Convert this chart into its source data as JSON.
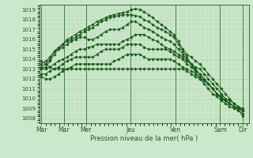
{
  "xlabel": "Pression niveau de la mer( hPa )",
  "bg_color": "#cce8cc",
  "plot_bg_color": "#cce8cc",
  "grid_color": "#aacfaa",
  "line_color": "#1a5c1a",
  "ylim": [
    1007.5,
    1019.5
  ],
  "yticks": [
    1008,
    1009,
    1010,
    1011,
    1012,
    1013,
    1014,
    1015,
    1016,
    1017,
    1018,
    1019
  ],
  "xtick_labels": [
    "Mar",
    "Mar",
    "Mer",
    "Jeu",
    "Ven",
    "Sam",
    "Dir"
  ],
  "xtick_positions": [
    0,
    1,
    2,
    4,
    6,
    8,
    9
  ],
  "series": [
    [
      1013.0,
      1013.2,
      1013.8,
      1014.5,
      1015.0,
      1015.5,
      1016.0,
      1016.2,
      1016.5,
      1016.8,
      1017.0,
      1017.3,
      1017.5,
      1017.8,
      1018.0,
      1018.2,
      1018.4,
      1018.5,
      1018.6,
      1018.7,
      1018.8,
      1019.0,
      1019.1,
      1019.0,
      1018.8,
      1018.5,
      1018.2,
      1017.8,
      1017.5,
      1017.2,
      1016.8,
      1016.5,
      1015.8,
      1015.0,
      1014.5,
      1014.2,
      1013.8,
      1013.5,
      1013.0,
      1012.5,
      1012.0,
      1011.5,
      1011.0,
      1010.5,
      1010.0,
      1009.5,
      1009.2,
      1008.8
    ],
    [
      1013.2,
      1013.5,
      1014.0,
      1014.8,
      1015.2,
      1015.5,
      1015.8,
      1016.0,
      1016.2,
      1016.5,
      1016.8,
      1017.0,
      1017.2,
      1017.5,
      1017.8,
      1018.0,
      1018.2,
      1018.3,
      1018.4,
      1018.5,
      1018.5,
      1018.5,
      1018.4,
      1018.3,
      1018.0,
      1017.8,
      1017.5,
      1017.2,
      1017.0,
      1016.8,
      1016.5,
      1016.2,
      1015.5,
      1014.8,
      1014.2,
      1013.5,
      1012.8,
      1012.0,
      1011.5,
      1011.0,
      1010.5,
      1010.2,
      1009.8,
      1009.5,
      1009.2,
      1009.0,
      1008.8,
      1008.5
    ],
    [
      1013.5,
      1013.8,
      1014.2,
      1014.8,
      1015.0,
      1015.2,
      1015.5,
      1015.8,
      1016.0,
      1016.2,
      1016.2,
      1016.0,
      1016.0,
      1016.2,
      1016.5,
      1016.8,
      1017.0,
      1017.0,
      1017.0,
      1017.2,
      1017.5,
      1017.8,
      1017.8,
      1017.5,
      1017.2,
      1017.0,
      1016.8,
      1016.5,
      1016.2,
      1016.0,
      1015.8,
      1015.5,
      1015.0,
      1014.5,
      1014.0,
      1013.5,
      1013.0,
      1012.5,
      1012.0,
      1011.5,
      1011.0,
      1010.5,
      1010.0,
      1009.8,
      1009.5,
      1009.2,
      1009.0,
      1008.8
    ],
    [
      1013.0,
      1013.0,
      1013.2,
      1013.5,
      1013.8,
      1014.0,
      1014.2,
      1014.5,
      1014.8,
      1015.0,
      1015.0,
      1015.2,
      1015.3,
      1015.5,
      1015.5,
      1015.5,
      1015.5,
      1015.5,
      1015.5,
      1015.8,
      1016.0,
      1016.2,
      1016.5,
      1016.5,
      1016.5,
      1016.2,
      1016.0,
      1015.8,
      1015.5,
      1015.2,
      1015.0,
      1014.8,
      1014.5,
      1014.2,
      1013.8,
      1013.5,
      1013.2,
      1013.0,
      1012.5,
      1012.0,
      1011.5,
      1011.0,
      1010.5,
      1010.0,
      1009.8,
      1009.5,
      1009.2,
      1009.0
    ],
    [
      1012.5,
      1012.5,
      1012.8,
      1013.0,
      1013.2,
      1013.5,
      1013.8,
      1014.0,
      1014.2,
      1014.2,
      1014.2,
      1014.2,
      1014.2,
      1014.5,
      1014.8,
      1015.0,
      1015.0,
      1015.0,
      1015.0,
      1015.2,
      1015.5,
      1015.5,
      1015.5,
      1015.5,
      1015.2,
      1015.0,
      1015.0,
      1015.0,
      1015.0,
      1015.0,
      1014.8,
      1014.5,
      1014.2,
      1014.0,
      1013.5,
      1013.2,
      1012.8,
      1012.5,
      1012.0,
      1011.5,
      1011.0,
      1010.5,
      1010.0,
      1009.8,
      1009.5,
      1009.2,
      1009.0,
      1008.8
    ],
    [
      1012.2,
      1012.0,
      1012.0,
      1012.2,
      1012.5,
      1012.8,
      1013.0,
      1013.2,
      1013.5,
      1013.5,
      1013.5,
      1013.5,
      1013.5,
      1013.5,
      1013.5,
      1013.5,
      1013.5,
      1013.8,
      1014.0,
      1014.2,
      1014.5,
      1014.5,
      1014.5,
      1014.5,
      1014.2,
      1014.0,
      1014.0,
      1014.0,
      1014.0,
      1014.0,
      1014.0,
      1013.8,
      1013.5,
      1013.2,
      1013.0,
      1012.8,
      1012.5,
      1012.2,
      1011.8,
      1011.5,
      1011.0,
      1010.5,
      1010.2,
      1009.8,
      1009.5,
      1009.2,
      1009.0,
      1008.8
    ],
    [
      1013.8,
      1013.5,
      1013.2,
      1013.0,
      1013.0,
      1013.0,
      1013.0,
      1013.0,
      1013.0,
      1013.0,
      1013.0,
      1013.0,
      1013.0,
      1013.0,
      1013.0,
      1013.0,
      1013.0,
      1013.0,
      1013.0,
      1013.0,
      1013.0,
      1013.0,
      1013.0,
      1013.0,
      1013.0,
      1013.0,
      1013.0,
      1013.0,
      1013.0,
      1013.0,
      1013.0,
      1013.0,
      1013.0,
      1013.0,
      1012.8,
      1012.5,
      1012.2,
      1012.0,
      1011.8,
      1011.5,
      1011.0,
      1010.5,
      1010.2,
      1009.8,
      1009.5,
      1009.2,
      1009.0,
      1008.2
    ]
  ]
}
